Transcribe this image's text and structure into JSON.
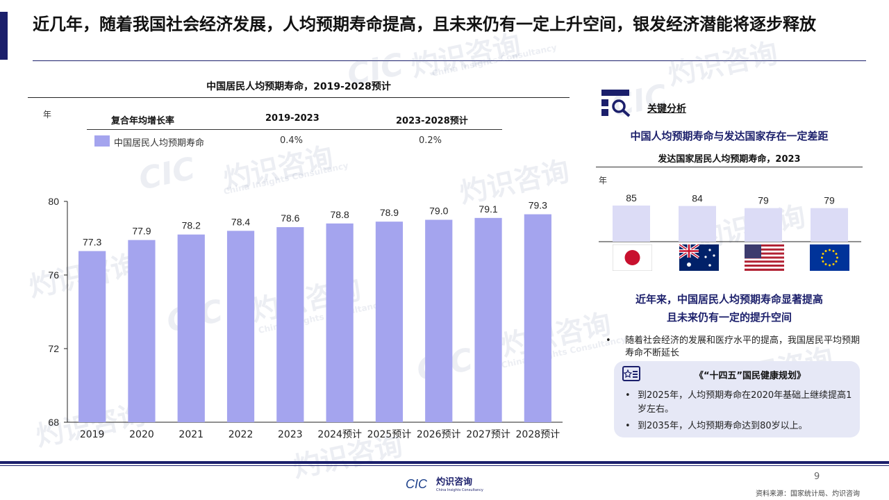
{
  "slide": {
    "title": "近几年，随着我国社会经济发展，人均预期寿命提高，且未来仍有一定上升空间，银发经济潜能将逐步释放",
    "page_number": "9",
    "source": "资料来源：国家统计局、灼识咨询",
    "watermark_cn": "灼识咨询",
    "watermark_en": "China Insights Consultancy",
    "watermark_logo": "CIC",
    "footer_logo_cn": "灼识咨询",
    "footer_logo_en": "China Insights Consultancy",
    "footer_logo_mark": "CIC",
    "accent_color": "#1b1f6b",
    "bar_color": "#a4a4ee"
  },
  "main_chart": {
    "title": "中国居民人均预期寿命，2019-2028预计",
    "unit": "年",
    "cagr_header": "复合年均增长率",
    "period_1": "2019-2023",
    "period_2": "2023-2028预计",
    "legend_label": "中国居民人均预期寿命",
    "cagr_1": "0.4%",
    "cagr_2": "0.2%"
  },
  "chart_data": [
    {
      "type": "bar",
      "title": "中国居民人均预期寿命，2019-2028预计",
      "ylabel": "年",
      "categories": [
        "2019",
        "2020",
        "2021",
        "2022",
        "2023",
        "2024预计",
        "2025预计",
        "2026预计",
        "2027预计",
        "2028预计"
      ],
      "series": [
        {
          "name": "中国居民人均预期寿命",
          "values": [
            77.3,
            77.9,
            78.2,
            78.4,
            78.6,
            78.8,
            78.9,
            79.0,
            79.1,
            79.3
          ]
        }
      ],
      "value_labels": [
        "77.3",
        "77.9",
        "78.2",
        "78.4",
        "78.6",
        "78.8",
        "78.9",
        "79.0",
        "79.1",
        "79.3"
      ],
      "ylim": [
        68,
        80
      ],
      "yticks": [
        68,
        72,
        76,
        80
      ],
      "grid": false
    },
    {
      "type": "bar",
      "title": "发达国家居民人均预期寿命，2023",
      "ylabel": "年",
      "categories": [
        "Japan",
        "Australia",
        "United States",
        "European Union"
      ],
      "values": [
        85,
        84,
        79,
        79
      ],
      "grid": false
    }
  ],
  "analysis": {
    "label": "关键分析",
    "gap_heading": "中国人均预期寿命与发达国家存在一定差距",
    "dev_chart_title": "发达国家居民人均预期寿命，2023",
    "unit": "年",
    "flags": [
      "japan-flag-icon",
      "australia-flag-icon",
      "usa-flag-icon",
      "eu-flag-icon"
    ],
    "summary_line_1": "近年来，中国居民人均预期寿命显著提高",
    "summary_line_2": "且未来仍有一定的提升空间",
    "bullet_1": "随着社会经济的发展和医疗水平的提高，我国居民平均预期寿命不断延长",
    "plan_title": "《“十四五”国民健康规划》",
    "plan_item_1": "到2025年，人均预期寿命在2020年基础上继续提高1岁左右。",
    "plan_item_2": "到2035年，人均预期寿命达到80岁以上。"
  }
}
